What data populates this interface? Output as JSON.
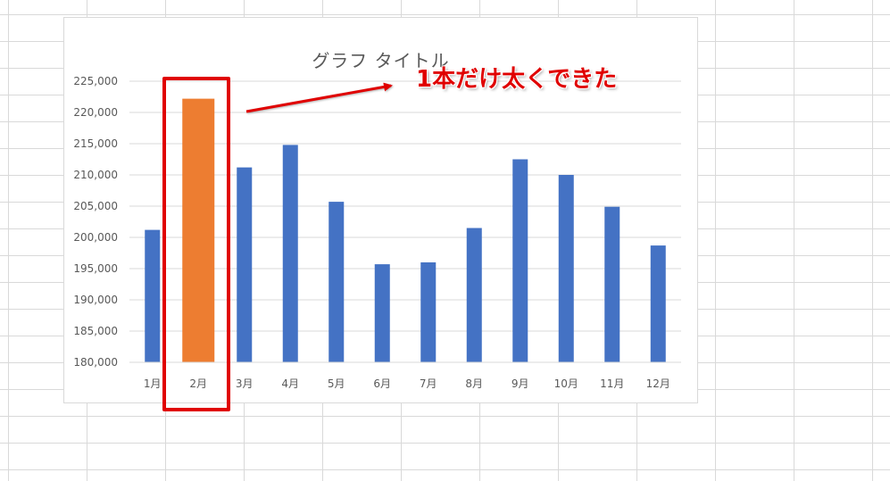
{
  "chart_data": {
    "type": "bar",
    "title": "グラフ タイトル",
    "categories": [
      "1月",
      "2月",
      "3月",
      "4月",
      "5月",
      "6月",
      "7月",
      "8月",
      "9月",
      "10月",
      "11月",
      "12月"
    ],
    "values": [
      201200,
      222200,
      211200,
      214800,
      205700,
      195700,
      196000,
      201500,
      212500,
      210000,
      204900,
      198700
    ],
    "ylim": [
      180000,
      225000
    ],
    "yticks": [
      180000,
      185000,
      190000,
      195000,
      200000,
      205000,
      210000,
      215000,
      220000,
      225000
    ],
    "ytick_labels": [
      "180,000",
      "185,000",
      "190,000",
      "195,000",
      "200,000",
      "205,000",
      "210,000",
      "215,000",
      "220,000",
      "225,000"
    ],
    "grid": true,
    "bar_color": "#4472c4",
    "highlight_color": "#ed7d31",
    "highlight_index": 1,
    "annotation": "1本だけ太くできた",
    "annotation_color": "#e00000"
  }
}
